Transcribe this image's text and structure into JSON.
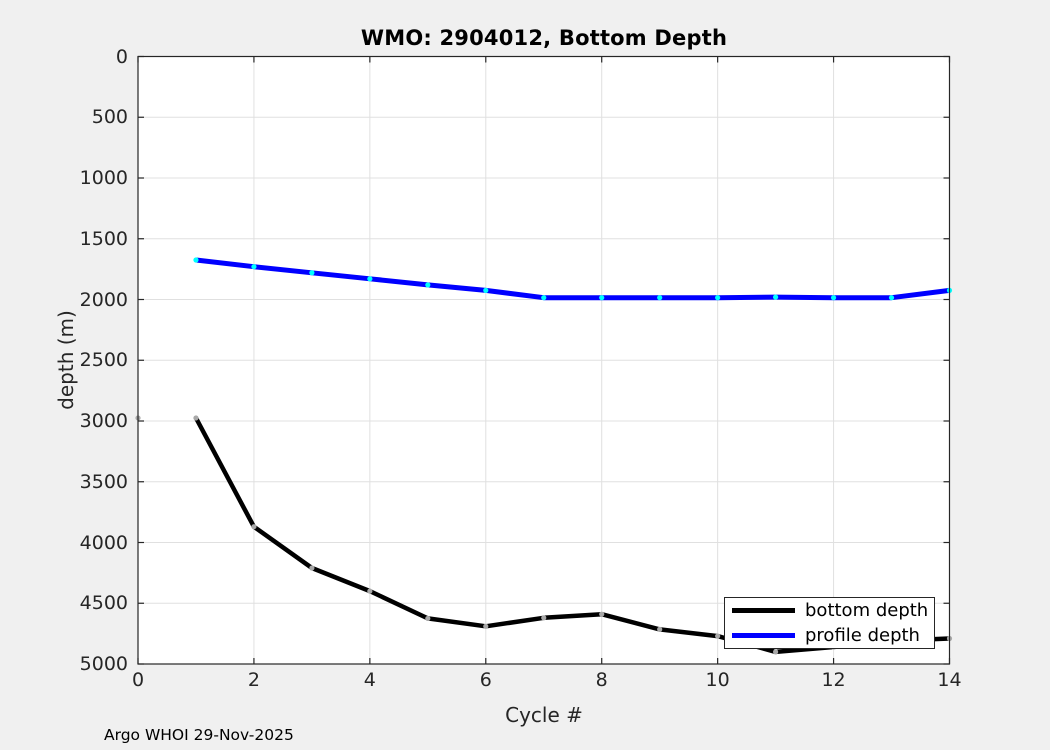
{
  "title": "WMO: 2904012, Bottom Depth",
  "footer": "Argo WHOI 29-Nov-2025",
  "legend": {
    "items": [
      {
        "label": "bottom depth",
        "color": "#000000"
      },
      {
        "label": "profile depth",
        "color": "#0000ff"
      }
    ]
  },
  "colors": {
    "figure_bg": "#f0f0f0",
    "plot_bg": "#ffffff",
    "grid": "#e0e0e0",
    "axis": "#262626",
    "text": "#262626"
  },
  "chart_data": {
    "type": "line",
    "title": "WMO: 2904012, Bottom Depth",
    "xlabel": "Cycle #",
    "ylabel": "depth (m)",
    "xlim": [
      0,
      14
    ],
    "ylim": [
      0,
      5000
    ],
    "y_axis_reversed": true,
    "grid": true,
    "legend_position": "bottom-right",
    "x_ticks": [
      0,
      2,
      4,
      6,
      8,
      10,
      12,
      14
    ],
    "y_ticks": [
      0,
      500,
      1000,
      1500,
      2000,
      2500,
      3000,
      3500,
      4000,
      4500,
      5000
    ],
    "x": [
      1,
      2,
      3,
      4,
      5,
      6,
      7,
      8,
      9,
      10,
      11,
      12,
      13,
      14
    ],
    "series": [
      {
        "name": "bottom depth",
        "color": "#000000",
        "marker_color": "#a8a8a8",
        "line_width": 4.5,
        "values": [
          2975,
          3870,
          4210,
          4400,
          4625,
          4690,
          4620,
          4590,
          4715,
          4770,
          4900,
          4860,
          4810,
          4790
        ]
      },
      {
        "name": "profile depth",
        "color": "#0000ff",
        "marker_color": "#00ffff",
        "line_width": 5,
        "values": [
          1675,
          1730,
          1780,
          1830,
          1880,
          1925,
          1985,
          1985,
          1985,
          1985,
          1980,
          1985,
          1985,
          1925
        ]
      }
    ],
    "extra_marker_points": [
      {
        "series": "bottom depth",
        "x": 0,
        "y": 2975,
        "color": "#a8a8a8"
      }
    ]
  }
}
